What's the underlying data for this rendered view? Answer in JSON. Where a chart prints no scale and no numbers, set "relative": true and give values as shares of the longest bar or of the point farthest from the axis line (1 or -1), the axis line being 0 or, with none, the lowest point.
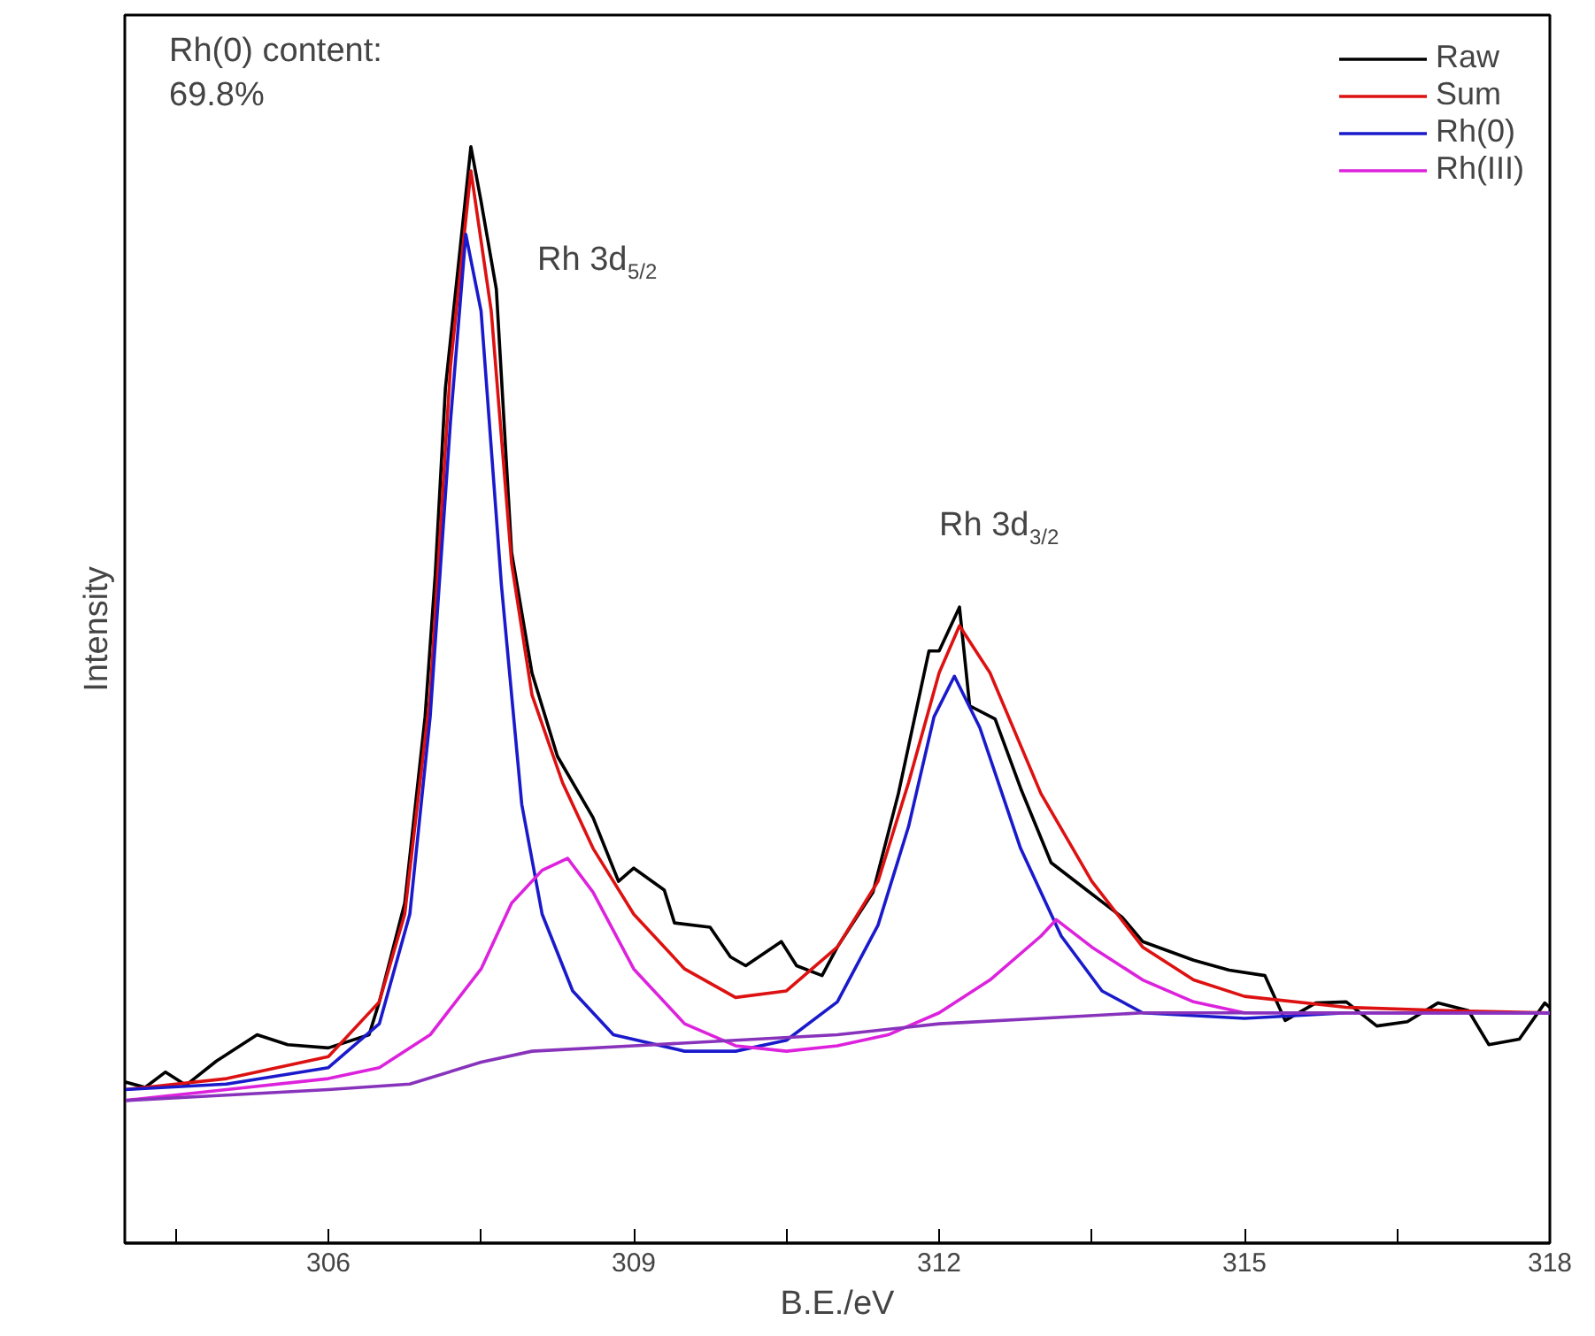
{
  "chart_data": {
    "type": "line",
    "relative": true,
    "xlabel": "B.E./eV",
    "ylabel": "Intensity",
    "xlim": [
      304,
      318
    ],
    "xticks": [
      {
        "value": 304.5,
        "label": null
      },
      306,
      {
        "value": 307.5,
        "label": null
      },
      309,
      {
        "value": 310.5,
        "label": null
      },
      312,
      {
        "value": 313.5,
        "label": null
      },
      315,
      {
        "value": 316.5,
        "label": null
      },
      318
    ],
    "grid": false,
    "legend": "top right",
    "line_style": "solid",
    "marker": "none",
    "annotations": [
      "Rh(0) content:\n 69.8%",
      "Rh 3d$_{5/2}$",
      "Rh 3d$_{3/2}$"
    ],
    "series": [
      {
        "name": "Raw",
        "color": "#000000",
        "x": [
          304.0,
          304.2,
          304.4,
          304.6,
          304.9,
          305.3,
          305.6,
          306.0,
          306.4,
          306.5,
          306.75,
          306.95,
          307.05,
          307.15,
          307.4,
          307.5,
          307.65,
          307.8,
          308.0,
          308.25,
          308.6,
          308.85,
          309.0,
          309.3,
          309.4,
          309.75,
          309.95,
          310.1,
          310.45,
          310.6,
          310.85,
          311.0,
          311.35,
          311.6,
          311.9,
          312.0,
          312.2,
          312.3,
          312.55,
          312.8,
          313.1,
          313.45,
          313.8,
          314.0,
          314.5,
          314.85,
          315.2,
          315.4,
          315.7,
          316.0,
          316.3,
          316.6,
          316.9,
          317.2,
          317.4,
          317.7,
          317.95,
          318.0
        ],
        "values": [
          0.147,
          0.142,
          0.156,
          0.144,
          0.166,
          0.19,
          0.181,
          0.178,
          0.19,
          0.22,
          0.31,
          0.48,
          0.61,
          0.78,
          1.0,
          0.95,
          0.87,
          0.63,
          0.52,
          0.444,
          0.388,
          0.33,
          0.342,
          0.322,
          0.292,
          0.288,
          0.261,
          0.253,
          0.275,
          0.253,
          0.244,
          0.27,
          0.32,
          0.41,
          0.54,
          0.54,
          0.58,
          0.49,
          0.478,
          0.415,
          0.347,
          0.322,
          0.297,
          0.275,
          0.258,
          0.249,
          0.244,
          0.203,
          0.219,
          0.22,
          0.198,
          0.202,
          0.219,
          0.212,
          0.181,
          0.186,
          0.219,
          0.215
        ]
      },
      {
        "name": "Sum",
        "color": "#dd1111",
        "x": [
          304.0,
          305.0,
          306.0,
          306.5,
          306.75,
          307.0,
          307.2,
          307.4,
          307.6,
          307.8,
          308.0,
          308.3,
          308.6,
          309.0,
          309.5,
          310.0,
          310.5,
          311.0,
          311.4,
          311.7,
          312.0,
          312.2,
          312.5,
          313.0,
          313.5,
          314.0,
          314.5,
          315.0,
          316.0,
          317.0,
          318.0
        ],
        "values": [
          0.14,
          0.15,
          0.17,
          0.22,
          0.3,
          0.5,
          0.8,
          0.978,
          0.85,
          0.62,
          0.5,
          0.42,
          0.36,
          0.3,
          0.25,
          0.224,
          0.23,
          0.27,
          0.33,
          0.42,
          0.52,
          0.563,
          0.52,
          0.41,
          0.33,
          0.27,
          0.24,
          0.225,
          0.215,
          0.212,
          0.21
        ]
      },
      {
        "name": "Rh(0)",
        "color": "#1a1acc",
        "x": [
          304.0,
          305.0,
          306.0,
          306.5,
          306.8,
          307.0,
          307.2,
          307.35,
          307.5,
          307.7,
          307.9,
          308.1,
          308.4,
          308.8,
          309.5,
          310.0,
          310.5,
          311.0,
          311.4,
          311.7,
          311.95,
          312.15,
          312.4,
          312.8,
          313.2,
          313.6,
          314.0,
          315.0,
          316.0,
          318.0
        ],
        "values": [
          0.14,
          0.145,
          0.16,
          0.2,
          0.3,
          0.48,
          0.75,
          0.92,
          0.85,
          0.6,
          0.4,
          0.3,
          0.23,
          0.19,
          0.175,
          0.175,
          0.185,
          0.22,
          0.29,
          0.38,
          0.48,
          0.517,
          0.47,
          0.36,
          0.28,
          0.23,
          0.21,
          0.205,
          0.21,
          0.21
        ]
      },
      {
        "name": "Rh(III)",
        "color": "#dd22dd",
        "x": [
          304.0,
          305.0,
          306.0,
          306.5,
          307.0,
          307.5,
          307.8,
          308.1,
          308.35,
          308.6,
          309.0,
          309.5,
          310.0,
          310.5,
          311.0,
          311.5,
          312.0,
          312.5,
          313.0,
          313.15,
          313.5,
          314.0,
          314.5,
          315.0,
          316.0,
          318.0
        ],
        "values": [
          0.13,
          0.14,
          0.15,
          0.16,
          0.19,
          0.25,
          0.31,
          0.34,
          0.351,
          0.32,
          0.25,
          0.2,
          0.18,
          0.175,
          0.18,
          0.19,
          0.21,
          0.24,
          0.28,
          0.295,
          0.27,
          0.24,
          0.22,
          0.21,
          0.21,
          0.21
        ]
      },
      {
        "color": "#8833bb",
        "x": [
          304.0,
          305.0,
          306.0,
          306.8,
          307.5,
          308.0,
          309.0,
          310.0,
          311.0,
          312.0,
          313.0,
          314.0,
          316.0,
          318.0
        ],
        "values": [
          0.13,
          0.135,
          0.14,
          0.145,
          0.165,
          0.175,
          0.18,
          0.185,
          0.19,
          0.2,
          0.205,
          0.21,
          0.21,
          0.21
        ]
      }
    ]
  }
}
